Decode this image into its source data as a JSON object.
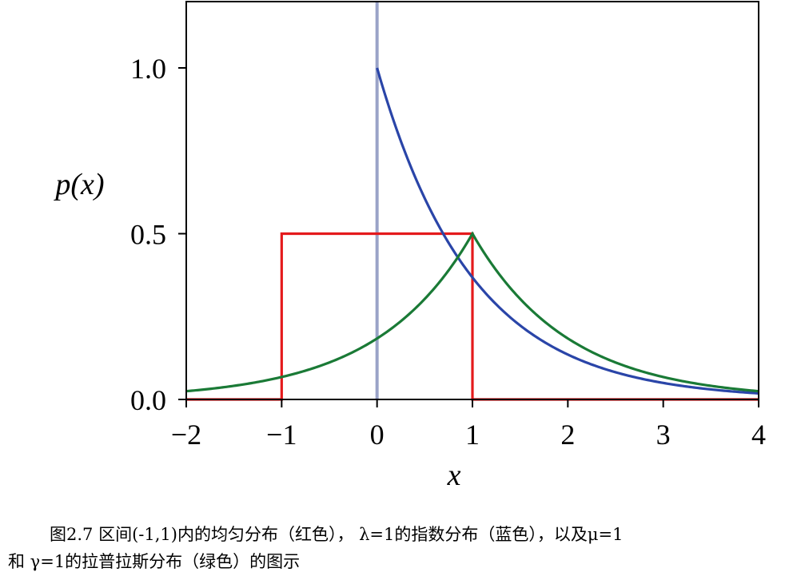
{
  "chart_data": {
    "type": "line",
    "xlabel": "x",
    "ylabel": "p(x)",
    "xlim": [
      -2,
      4
    ],
    "ylim": [
      0,
      1.2
    ],
    "xticks": [
      "−2",
      "−1",
      "0",
      "1",
      "2",
      "3",
      "4"
    ],
    "yticks": [
      "0.0",
      "0.5",
      "1.0"
    ],
    "grid": false,
    "series": [
      {
        "color": "#e41a1c",
        "x": [
          -2,
          -1,
          -1,
          1,
          1,
          4
        ],
        "y": [
          0,
          0,
          0.5,
          0.5,
          0,
          0
        ]
      },
      {
        "color": "#2a45a8",
        "x": [
          0,
          0.25,
          0.5,
          0.75,
          1,
          1.5,
          2,
          2.5,
          3,
          3.5,
          4
        ],
        "y": [
          1.0,
          0.779,
          0.607,
          0.472,
          0.368,
          0.223,
          0.135,
          0.082,
          0.05,
          0.03,
          0.018
        ]
      },
      {
        "color": "#1a7a36",
        "x": [
          -2,
          -1.5,
          -1,
          -0.5,
          0,
          0.5,
          1,
          1.5,
          2,
          2.5,
          3,
          3.5,
          4
        ],
        "y": [
          0.025,
          0.041,
          0.068,
          0.112,
          0.184,
          0.303,
          0.5,
          0.303,
          0.184,
          0.112,
          0.068,
          0.041,
          0.025
        ]
      }
    ],
    "vline": {
      "x": 0,
      "color": "#9aa3c8"
    }
  },
  "caption": {
    "line1": "图2.7 区间(-1,1)内的均匀分布（红色）， λ=1的指数分布（蓝色），以及μ=1",
    "line2": "和 γ=1的拉普拉斯分布（绿色）的图示"
  }
}
